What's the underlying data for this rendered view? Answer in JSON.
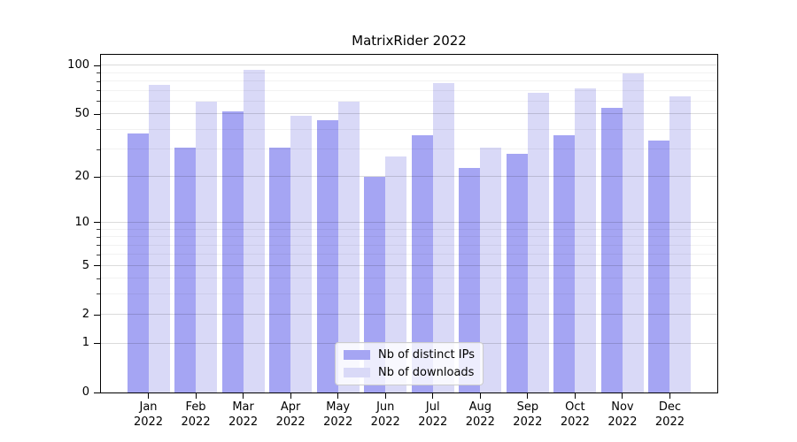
{
  "title": "MatrixRider 2022",
  "chart_data": {
    "type": "bar",
    "title": "MatrixRider 2022",
    "categories": [
      "Jan",
      "Feb",
      "Mar",
      "Apr",
      "May",
      "Jun",
      "Jul",
      "Aug",
      "Sep",
      "Oct",
      "Nov",
      "Dec"
    ],
    "category_year": "2022",
    "series": [
      {
        "name": "Nb of distinct IPs",
        "color": "#a5a5f3",
        "values": [
          38,
          31,
          52,
          31,
          46,
          20,
          37,
          23,
          28,
          37,
          55,
          34
        ]
      },
      {
        "name": "Nb of downloads",
        "color": "#d9d9f7",
        "values": [
          76,
          60,
          94,
          49,
          60,
          27,
          78,
          31,
          68,
          72,
          90,
          65
        ]
      }
    ],
    "xlabel": "",
    "ylabel": "",
    "yscale": "symlog (position = ln(1+y))",
    "y_major_ticks": [
      0,
      1,
      2,
      5,
      10,
      20,
      50,
      100
    ],
    "y_minor_ticks": [
      3,
      4,
      6,
      7,
      8,
      9,
      30,
      40,
      60,
      70,
      80,
      90
    ],
    "ylim": [
      0,
      116
    ],
    "grid": true,
    "legend_position": "lower center"
  }
}
